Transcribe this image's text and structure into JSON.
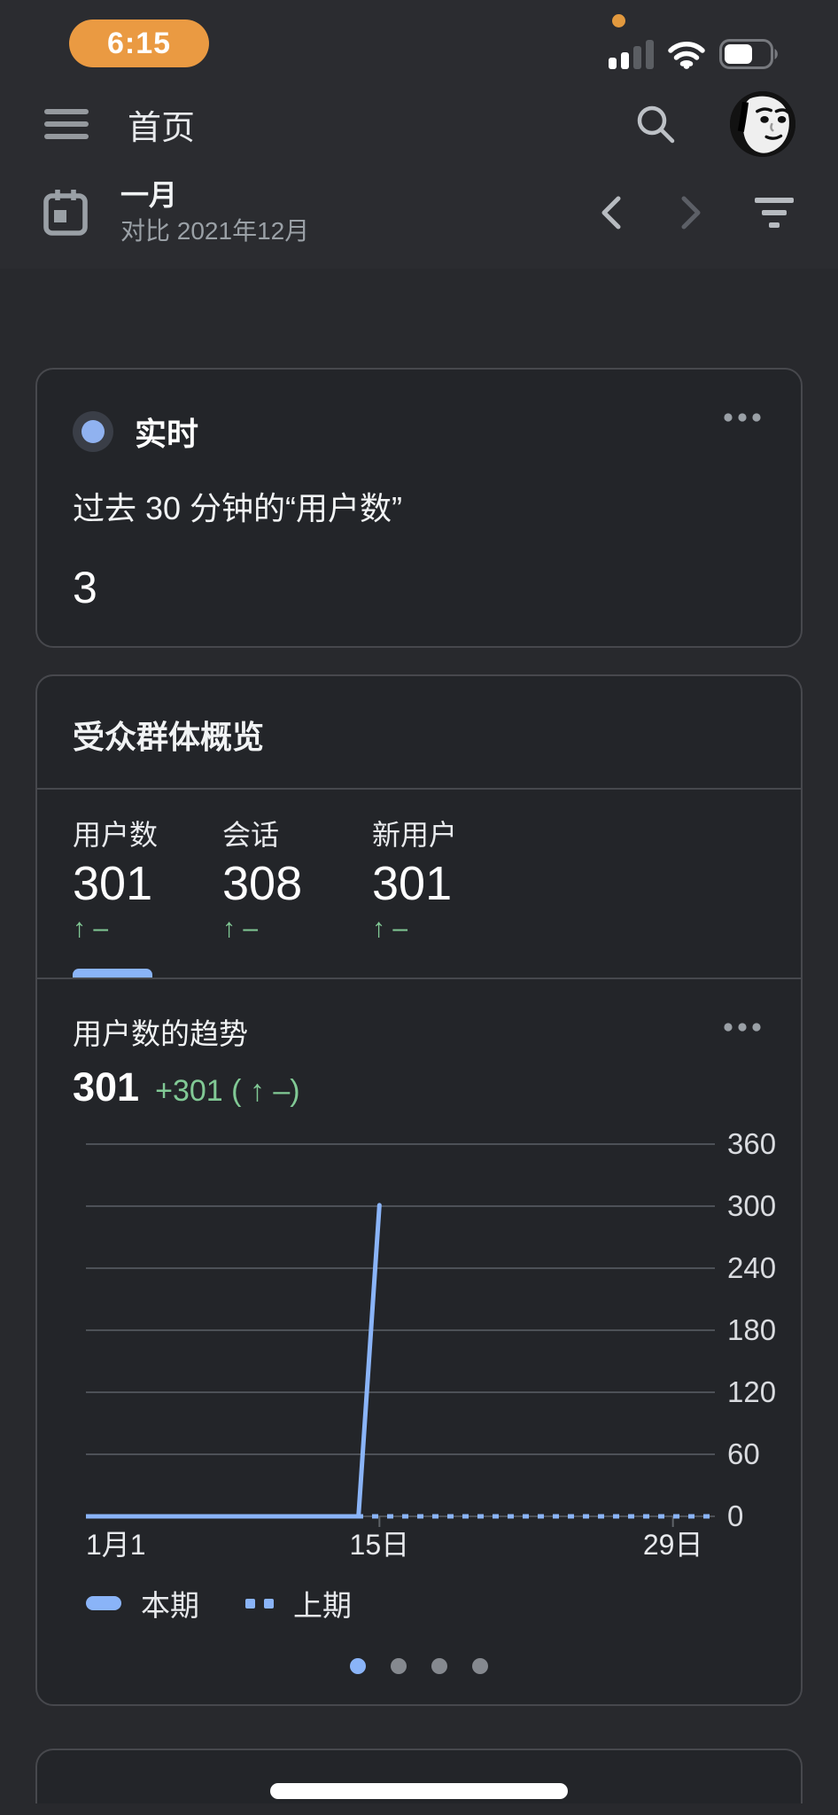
{
  "status_bar": {
    "time": "6:15"
  },
  "header": {
    "title": "首页"
  },
  "date_bar": {
    "period": "一月",
    "comparison": "对比 2021年12月"
  },
  "realtime_card": {
    "title": "实时",
    "subtitle": "过去 30 分钟的“用户数”",
    "value": "3"
  },
  "overview_card": {
    "title": "受众群体概览",
    "metrics": [
      {
        "label": "用户数",
        "value": "301",
        "delta": "↑ –"
      },
      {
        "label": "会话",
        "value": "308",
        "delta": "↑ –"
      },
      {
        "label": "新用户",
        "value": "301",
        "delta": "↑ –"
      }
    ],
    "pager": {
      "count": 4,
      "active": 0
    }
  },
  "chart_data": {
    "type": "line",
    "title": "用户数的趋势",
    "headline_value": "301",
    "headline_delta": "+301 ( ↑ –)",
    "xlim": [
      1,
      31
    ],
    "ylim": [
      0,
      360
    ],
    "y_ticks": [
      0,
      60,
      120,
      180,
      240,
      300,
      360
    ],
    "x_ticks": [
      {
        "day": 1,
        "label": "1月1",
        "align": "left",
        "tick": false
      },
      {
        "day": 15,
        "label": "15日",
        "align": "center",
        "tick": true
      },
      {
        "day": 29,
        "label": "29日",
        "align": "center",
        "tick": true
      }
    ],
    "grid": true,
    "legend_position": "bottom",
    "series": [
      {
        "name": "本期",
        "style": "solid",
        "points": [
          [
            1,
            0
          ],
          [
            14,
            0
          ],
          [
            15,
            301
          ]
        ]
      },
      {
        "name": "上期",
        "style": "dashed",
        "points": [
          [
            1,
            0
          ],
          [
            31,
            0
          ]
        ]
      }
    ],
    "colors": {
      "series": "#8ab4f8",
      "grid": "#4d5157",
      "tick": "#5f6368"
    }
  },
  "colors": {
    "accent_blue": "#8ab4f8",
    "positive_green": "#81c995",
    "time_pill_orange": "#ea9a42",
    "recording_dot_orange": "#e2993e"
  }
}
